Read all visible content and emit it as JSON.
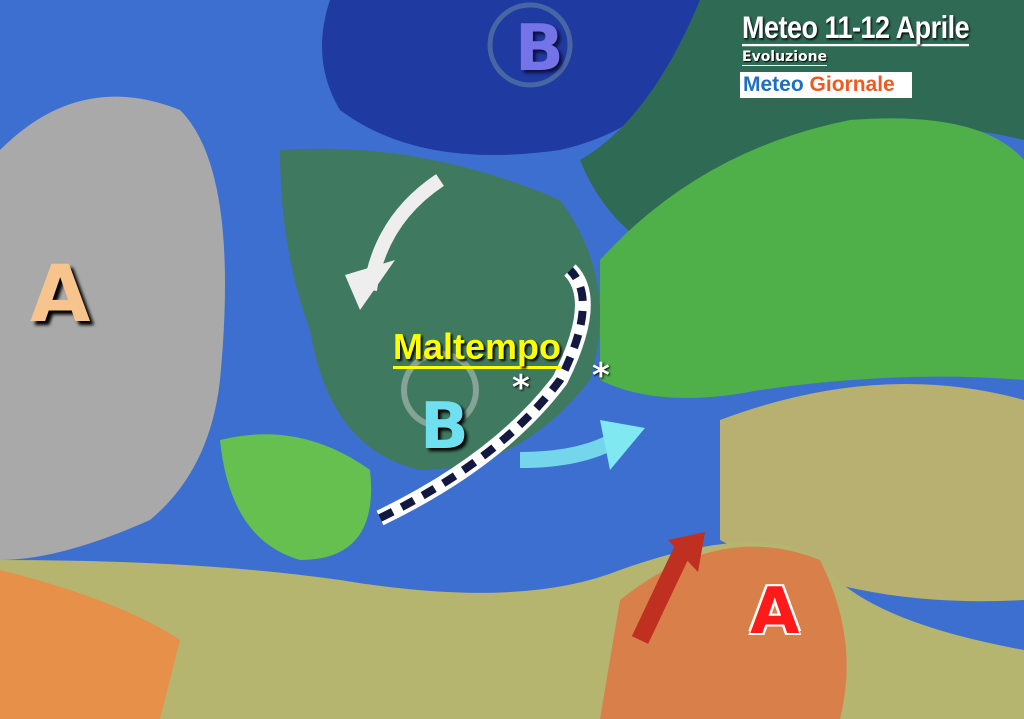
{
  "header": {
    "title": "Meteo 11-12 Aprile",
    "subtitle": "Evoluzione",
    "brand_part1": "Meteo",
    "brand_part2": "Giornale"
  },
  "labels": {
    "high_atlantic": "A",
    "low_north": "B",
    "low_france": "B",
    "high_africa": "A",
    "weather_label": "Maltempo",
    "snow_symbol": "*"
  },
  "colors": {
    "sea": "#3d6fd0",
    "deep_low": "#1f3aa0",
    "high_grey": "#a9a9a9",
    "warm_orange": "#e6904a",
    "land_green": "#3c8c3c",
    "brand_blue": "#1e6fc0",
    "brand_orange": "#ef5a1e",
    "alert_red": "#ff1a1a",
    "label_yellow": "#ffff00"
  },
  "icons": [
    "cold-air-arrow",
    "warm-air-arrow",
    "cold-front",
    "low-pressure-swirl"
  ]
}
